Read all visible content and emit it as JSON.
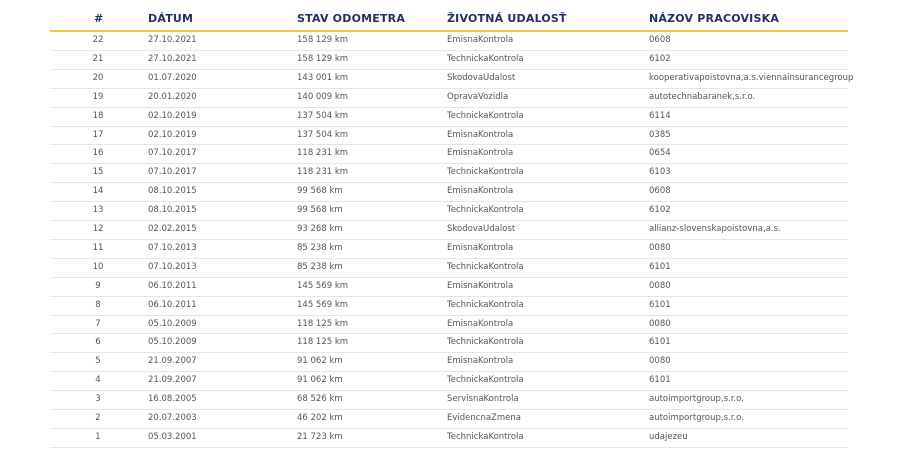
{
  "table": {
    "columns": [
      "#",
      "DÁTUM",
      "STAV ODOMETRA",
      "ŽIVOTNÁ UDALOSŤ",
      "NÁZOV PRACOVISKA"
    ],
    "rows": [
      [
        "22",
        "27.10.2021",
        "158 129 km",
        "EmisnaKontrola",
        "0608"
      ],
      [
        "21",
        "27.10.2021",
        "158 129 km",
        "TechnickaKontrola",
        "6102"
      ],
      [
        "20",
        "01.07.2020",
        "143 001 km",
        "SkodovaUdalost",
        "kooperativapoistovna,a.s.viennainsurancegroup"
      ],
      [
        "19",
        "20.01.2020",
        "140 009 km",
        "OpravaVozidla",
        "autotechnabaranek,s.r.o."
      ],
      [
        "18",
        "02.10.2019",
        "137 504 km",
        "TechnickaKontrola",
        "6114"
      ],
      [
        "17",
        "02.10.2019",
        "137 504 km",
        "EmisnaKontrola",
        "0385"
      ],
      [
        "16",
        "07.10.2017",
        "118 231 km",
        "EmisnaKontrola",
        "0654"
      ],
      [
        "15",
        "07.10.2017",
        "118 231 km",
        "TechnickaKontrola",
        "6103"
      ],
      [
        "14",
        "08.10.2015",
        "99 568 km",
        "EmisnaKontrola",
        "0608"
      ],
      [
        "13",
        "08.10.2015",
        "99 568 km",
        "TechnickaKontrola",
        "6102"
      ],
      [
        "12",
        "02.02.2015",
        "93 268 km",
        "SkodovaUdalost",
        "allianz-slovenskapoistovna,a.s."
      ],
      [
        "11",
        "07.10.2013",
        "85 238 km",
        "EmisnaKontrola",
        "0080"
      ],
      [
        "10",
        "07.10.2013",
        "85 238 km",
        "TechnickaKontrola",
        "6101"
      ],
      [
        "9",
        "06.10.2011",
        "145 569 km",
        "EmisnaKontrola",
        "0080"
      ],
      [
        "8",
        "06.10.2011",
        "145 569 km",
        "TechnickaKontrola",
        "6101"
      ],
      [
        "7",
        "05.10.2009",
        "118 125 km",
        "EmisnaKontrola",
        "0080"
      ],
      [
        "6",
        "05.10.2009",
        "118 125 km",
        "TechnickaKontrola",
        "6101"
      ],
      [
        "5",
        "21.09.2007",
        "91 062 km",
        "EmisnaKontrola",
        "0080"
      ],
      [
        "4",
        "21.09.2007",
        "91 062 km",
        "TechnickaKontrola",
        "6101"
      ],
      [
        "3",
        "16.08.2005",
        "68 526 km",
        "ServisnaKontrola",
        "autoimportgroup,s.r.o."
      ],
      [
        "2",
        "20.07.2003",
        "46 202 km",
        "EvidencnaZmena",
        "autoimportgroup,s.r.o."
      ],
      [
        "1",
        "05.03.2001",
        "21 723 km",
        "TechnickaKontrola",
        "udajezeu"
      ]
    ]
  }
}
